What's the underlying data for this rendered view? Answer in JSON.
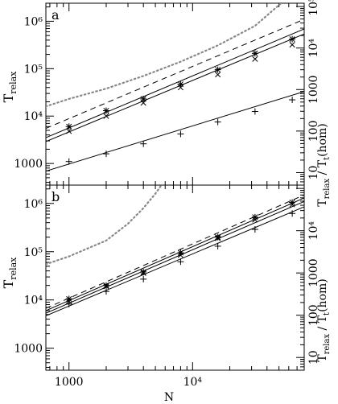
{
  "chart_data": [
    {
      "type": "line",
      "panel_label": "a",
      "xscale": "log",
      "yscale": "log",
      "xlim": [
        650,
        80000
      ],
      "ylim": [
        350,
        2400000
      ],
      "right_ylim": [
        5,
        120000
      ],
      "right_yticks": [
        "10⁵",
        "10⁴",
        "1000",
        "100",
        "10"
      ],
      "left_yticks": [
        "10⁶",
        "10⁵",
        "10⁴",
        "1000"
      ],
      "series": [
        {
          "style": "star-marker",
          "x": [
            1000,
            2000,
            4000,
            8000,
            16000,
            32000,
            64000
          ],
          "values": [
            6000,
            13000,
            23000,
            47000,
            95000,
            210000,
            420000
          ]
        },
        {
          "style": "x-marker",
          "x": [
            1000,
            2000,
            4000,
            8000,
            16000,
            32000,
            64000
          ],
          "values": [
            4800,
            10000,
            19000,
            40000,
            75000,
            160000,
            320000
          ]
        },
        {
          "style": "plus-marker",
          "x": [
            1000,
            2000,
            4000,
            8000,
            16000,
            32000,
            64000
          ],
          "values": [
            1100,
            1600,
            2600,
            4200,
            7500,
            12500,
            22000
          ]
        },
        {
          "style": "dashed",
          "x": [
            650,
            80000
          ],
          "values": [
            5500,
            1100000
          ]
        },
        {
          "style": "solid",
          "x": [
            650,
            80000
          ],
          "values": [
            3500,
            690000
          ]
        },
        {
          "style": "solid",
          "x": [
            650,
            80000
          ],
          "values": [
            2900,
            540000
          ]
        },
        {
          "style": "solid",
          "x": [
            650,
            80000
          ],
          "values": [
            690,
            33000
          ]
        },
        {
          "style": "dotted",
          "x": [
            650,
            1000,
            2000,
            4000,
            8000,
            16000,
            32000,
            52000
          ],
          "values": [
            16000,
            23000,
            38000,
            70000,
            140000,
            310000,
            800000,
            2400000
          ]
        }
      ]
    },
    {
      "type": "line",
      "panel_label": "b",
      "xscale": "log",
      "yscale": "log",
      "xlim": [
        650,
        80000
      ],
      "ylim": [
        350,
        2400000
      ],
      "right_ylim": [
        5,
        120000
      ],
      "right_yticks": [
        "10⁴",
        "1000",
        "100",
        "10"
      ],
      "left_yticks": [
        "10⁶",
        "10⁵",
        "10⁴",
        "1000"
      ],
      "xticks": [
        "1000",
        "10⁴"
      ],
      "xlabel": "N",
      "series": [
        {
          "style": "star-marker",
          "x": [
            1000,
            2000,
            4000,
            8000,
            16000,
            32000,
            64000
          ],
          "values": [
            10500,
            20000,
            38000,
            95000,
            200000,
            520000,
            1050000
          ]
        },
        {
          "style": "x-marker",
          "x": [
            1000,
            2000,
            4000,
            8000,
            16000,
            32000,
            64000
          ],
          "values": [
            9500,
            19000,
            36000,
            85000,
            190000,
            460000,
            950000
          ]
        },
        {
          "style": "plus-marker",
          "x": [
            1000,
            2000,
            4000,
            8000,
            16000,
            32000,
            64000
          ],
          "values": [
            8200,
            15000,
            27000,
            62000,
            130000,
            290000,
            620000
          ]
        },
        {
          "style": "dashed",
          "x": [
            650,
            80000
          ],
          "values": [
            6700,
            1500000
          ]
        },
        {
          "style": "solid",
          "x": [
            650,
            80000
          ],
          "values": [
            6000,
            1300000
          ]
        },
        {
          "style": "solid",
          "x": [
            650,
            80000
          ],
          "values": [
            5300,
            1100000
          ]
        },
        {
          "style": "solid",
          "x": [
            650,
            80000
          ],
          "values": [
            4700,
            850000
          ]
        },
        {
          "style": "dotted",
          "x": [
            650,
            1000,
            2000,
            3000,
            4000,
            5000,
            5600
          ],
          "values": [
            55000,
            80000,
            170000,
            380000,
            800000,
            1600000,
            2400000
          ]
        }
      ]
    }
  ],
  "labels": {
    "panel_a": "a",
    "panel_b": "b",
    "left_ylabel_main": "T",
    "left_ylabel_sub": "relax",
    "right_ylabel_main": "T",
    "right_ylabel_sub1": "relax",
    "right_ylabel_mid": " / T",
    "right_ylabel_sub2": "t",
    "right_ylabel_end": "(hom)",
    "xlabel": "N"
  }
}
